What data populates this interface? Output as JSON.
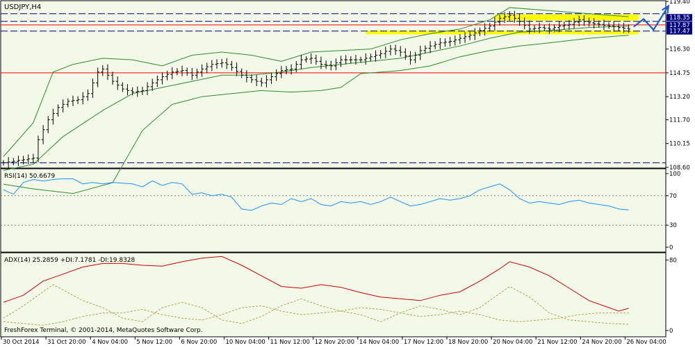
{
  "colors": {
    "background": "#ffffff",
    "panel_bg": "#f2f9e8",
    "border": "#000000",
    "bars": "#000000",
    "bollinger": "#2e8b2e",
    "rsi": "#1e90ff",
    "adx": "#cc0000",
    "di": "#b8a64a",
    "hline_dash": "#000080",
    "hline_red": "#ff0000",
    "highlight": "#ffff00",
    "forecast": "#1e5acc",
    "grid": "#808080"
  },
  "footer": {
    "copyright": "FreshForex Terminal, © 2001-2014, MetaQuotes Software Corp."
  },
  "chart_data": [
    {
      "type": "candlestick",
      "title": "USDJPY,H4",
      "yticks": [
        "119.40",
        "118.35",
        "117.87",
        "117.47",
        "116.30",
        "114.75",
        "113.20",
        "111.70",
        "110.15",
        "108.60"
      ],
      "ylim": [
        108.6,
        119.4
      ],
      "x_labels": [
        "30 Oct 2014",
        "31 Oct 20:00",
        "4 Nov 04:00",
        "5 Nov 12:00",
        "6 Nov 20:00",
        "10 Nov 04:00",
        "11 Nov 12:00",
        "12 Nov 20:00",
        "14 Nov 04:00",
        "17 Nov 12:00",
        "18 Nov 20:00",
        "20 Nov 04:00",
        "21 Nov 12:00",
        "24 Nov 20:00",
        "26 Nov 04:00"
      ],
      "close_anchors": [
        [
          0,
          108.9
        ],
        [
          6,
          109.2
        ],
        [
          7,
          110.4
        ],
        [
          9,
          111.7
        ],
        [
          11,
          112.5
        ],
        [
          13,
          112.9
        ],
        [
          15,
          113.0
        ],
        [
          17,
          113.4
        ],
        [
          19,
          114.8
        ],
        [
          20,
          115.0
        ],
        [
          22,
          114.2
        ],
        [
          24,
          113.7
        ],
        [
          26,
          113.5
        ],
        [
          28,
          113.6
        ],
        [
          30,
          114.1
        ],
        [
          32,
          114.5
        ],
        [
          34,
          114.8
        ],
        [
          36,
          114.9
        ],
        [
          38,
          114.6
        ],
        [
          40,
          115.0
        ],
        [
          42,
          115.3
        ],
        [
          44,
          115.4
        ],
        [
          45,
          115.3
        ],
        [
          46,
          115.1
        ],
        [
          48,
          114.6
        ],
        [
          50,
          114.3
        ],
        [
          52,
          114.1
        ],
        [
          54,
          114.5
        ],
        [
          56,
          114.9
        ],
        [
          58,
          115.0
        ],
        [
          60,
          115.6
        ],
        [
          62,
          115.7
        ],
        [
          64,
          115.3
        ],
        [
          66,
          115.2
        ],
        [
          68,
          115.6
        ],
        [
          70,
          115.6
        ],
        [
          72,
          115.6
        ],
        [
          74,
          115.8
        ],
        [
          76,
          116.0
        ],
        [
          78,
          116.3
        ],
        [
          80,
          116.1
        ],
        [
          82,
          115.6
        ],
        [
          84,
          116.2
        ],
        [
          86,
          116.5
        ],
        [
          88,
          116.7
        ],
        [
          90,
          116.8
        ],
        [
          92,
          117.0
        ],
        [
          94,
          117.2
        ],
        [
          96,
          117.5
        ],
        [
          98,
          117.8
        ],
        [
          100,
          118.3
        ],
        [
          102,
          118.5
        ],
        [
          104,
          118.1
        ],
        [
          106,
          117.6
        ],
        [
          108,
          117.7
        ],
        [
          110,
          117.6
        ],
        [
          112,
          117.8
        ],
        [
          114,
          117.9
        ],
        [
          116,
          118.2
        ],
        [
          118,
          118.0
        ],
        [
          120,
          117.9
        ],
        [
          122,
          117.8
        ],
        [
          124,
          117.7
        ],
        [
          126,
          117.6
        ]
      ],
      "highs_lows_note": "",
      "bollinger": {
        "upper": [
          [
            0,
            109.3
          ],
          [
            6,
            111.5
          ],
          [
            10,
            114.8
          ],
          [
            14,
            115.3
          ],
          [
            20,
            115.7
          ],
          [
            26,
            115.6
          ],
          [
            32,
            115.2
          ],
          [
            38,
            115.9
          ],
          [
            44,
            116.1
          ],
          [
            50,
            115.9
          ],
          [
            56,
            115.5
          ],
          [
            62,
            116.1
          ],
          [
            68,
            116.2
          ],
          [
            74,
            116.3
          ],
          [
            80,
            116.9
          ],
          [
            86,
            117.3
          ],
          [
            92,
            117.6
          ],
          [
            98,
            118.2
          ],
          [
            102,
            119.0
          ],
          [
            110,
            118.8
          ],
          [
            118,
            118.6
          ],
          [
            126,
            118.4
          ]
        ],
        "middle": [
          [
            0,
            108.4
          ],
          [
            6,
            108.8
          ],
          [
            12,
            110.6
          ],
          [
            20,
            112.3
          ],
          [
            26,
            113.4
          ],
          [
            32,
            113.8
          ],
          [
            38,
            114.2
          ],
          [
            44,
            114.6
          ],
          [
            50,
            114.6
          ],
          [
            56,
            114.8
          ],
          [
            62,
            115.1
          ],
          [
            68,
            115.3
          ],
          [
            74,
            115.5
          ],
          [
            80,
            115.7
          ],
          [
            86,
            116.1
          ],
          [
            92,
            116.5
          ],
          [
            98,
            117.0
          ],
          [
            104,
            117.4
          ],
          [
            110,
            117.5
          ],
          [
            118,
            117.7
          ],
          [
            126,
            117.8
          ]
        ],
        "lower": [
          [
            0,
            107.5
          ],
          [
            6,
            107.2
          ],
          [
            14,
            106.9
          ],
          [
            22,
            107.6
          ],
          [
            28,
            111.0
          ],
          [
            34,
            112.7
          ],
          [
            40,
            113.2
          ],
          [
            46,
            113.4
          ],
          [
            52,
            113.6
          ],
          [
            58,
            113.5
          ],
          [
            64,
            113.6
          ],
          [
            68,
            113.8
          ],
          [
            72,
            114.7
          ],
          [
            80,
            114.9
          ],
          [
            86,
            115.2
          ],
          [
            92,
            115.8
          ],
          [
            98,
            116.2
          ],
          [
            104,
            116.5
          ],
          [
            110,
            116.7
          ],
          [
            118,
            117.0
          ],
          [
            126,
            117.2
          ]
        ]
      },
      "hlines": [
        {
          "value": 118.6,
          "style": "dash"
        },
        {
          "value": 118.1,
          "style": "dash"
        },
        {
          "value": 117.87,
          "style": "red"
        },
        {
          "value": 117.47,
          "style": "dash"
        },
        {
          "value": 114.75,
          "style": "red"
        },
        {
          "value": 108.9,
          "style": "dash"
        }
      ],
      "highlight_bands": [
        {
          "from_index": 99,
          "to_index": 128,
          "low": 118.15,
          "high": 118.55
        },
        {
          "from_index": 73,
          "to_index": 128,
          "low": 117.25,
          "high": 117.5
        }
      ],
      "forecast_points": [
        [
          127,
          117.75
        ],
        [
          129,
          118.25
        ],
        [
          131,
          117.55
        ],
        [
          134,
          119.1
        ]
      ],
      "price_labels": [
        {
          "value": "118.35",
          "y": 118.35
        },
        {
          "value": "117.87",
          "y": 117.87
        },
        {
          "value": "117.47",
          "y": 117.47
        }
      ]
    },
    {
      "type": "line",
      "label": "RSI(14) 50.6679",
      "yticks": [
        "100",
        "70",
        "30",
        "0"
      ],
      "ylim": [
        0,
        100
      ],
      "levels": [
        70,
        30
      ],
      "values": [
        [
          0,
          78
        ],
        [
          2,
          72
        ],
        [
          4,
          88
        ],
        [
          6,
          92
        ],
        [
          8,
          90
        ],
        [
          10,
          92
        ],
        [
          12,
          93
        ],
        [
          14,
          93
        ],
        [
          16,
          86
        ],
        [
          18,
          88
        ],
        [
          20,
          86
        ],
        [
          22,
          88
        ],
        [
          24,
          87
        ],
        [
          26,
          86
        ],
        [
          28,
          82
        ],
        [
          30,
          90
        ],
        [
          32,
          84
        ],
        [
          34,
          88
        ],
        [
          36,
          86
        ],
        [
          38,
          72
        ],
        [
          40,
          74
        ],
        [
          42,
          70
        ],
        [
          44,
          72
        ],
        [
          46,
          68
        ],
        [
          48,
          52
        ],
        [
          50,
          50
        ],
        [
          52,
          56
        ],
        [
          54,
          60
        ],
        [
          56,
          58
        ],
        [
          58,
          66
        ],
        [
          60,
          62
        ],
        [
          62,
          66
        ],
        [
          64,
          58
        ],
        [
          66,
          56
        ],
        [
          68,
          62
        ],
        [
          70,
          60
        ],
        [
          72,
          62
        ],
        [
          74,
          58
        ],
        [
          76,
          62
        ],
        [
          78,
          68
        ],
        [
          80,
          62
        ],
        [
          82,
          56
        ],
        [
          84,
          58
        ],
        [
          86,
          62
        ],
        [
          88,
          66
        ],
        [
          90,
          64
        ],
        [
          92,
          66
        ],
        [
          94,
          70
        ],
        [
          96,
          78
        ],
        [
          98,
          82
        ],
        [
          100,
          86
        ],
        [
          102,
          78
        ],
        [
          104,
          66
        ],
        [
          106,
          60
        ],
        [
          108,
          62
        ],
        [
          110,
          60
        ],
        [
          112,
          58
        ],
        [
          114,
          62
        ],
        [
          116,
          64
        ],
        [
          118,
          60
        ],
        [
          120,
          58
        ],
        [
          122,
          56
        ],
        [
          124,
          52
        ],
        [
          126,
          50.7
        ]
      ]
    },
    {
      "type": "line",
      "label": "ADX(14) 25.2859 +DI:7.1781 -DI:19.8328",
      "yticks": [
        "80",
        "0"
      ],
      "ylim": [
        0,
        85
      ],
      "series": [
        {
          "values": [
            [
              0,
              32
            ],
            [
              4,
              40
            ],
            [
              8,
              56
            ],
            [
              12,
              64
            ],
            [
              16,
              72
            ],
            [
              20,
              76
            ],
            [
              24,
              76
            ],
            [
              28,
              74
            ],
            [
              32,
              73
            ],
            [
              36,
              78
            ],
            [
              40,
              82
            ],
            [
              44,
              84
            ],
            [
              48,
              74
            ],
            [
              52,
              62
            ],
            [
              56,
              50
            ],
            [
              60,
              48
            ],
            [
              64,
              52
            ],
            [
              68,
              49
            ],
            [
              72,
              43
            ],
            [
              76,
              38
            ],
            [
              80,
              36
            ],
            [
              84,
              34
            ],
            [
              88,
              40
            ],
            [
              92,
              44
            ],
            [
              96,
              56
            ],
            [
              100,
              70
            ],
            [
              102,
              78
            ],
            [
              106,
              72
            ],
            [
              110,
              62
            ],
            [
              114,
              48
            ],
            [
              118,
              34
            ],
            [
              122,
              26
            ],
            [
              124,
              22
            ],
            [
              126,
              25.3
            ]
          ]
        },
        {
          "values": [
            [
              0,
              14
            ],
            [
              4,
              28
            ],
            [
              8,
              44
            ],
            [
              10,
              52
            ],
            [
              12,
              46
            ],
            [
              16,
              34
            ],
            [
              20,
              26
            ],
            [
              24,
              14
            ],
            [
              28,
              10
            ],
            [
              32,
              26
            ],
            [
              36,
              32
            ],
            [
              40,
              26
            ],
            [
              44,
              12
            ],
            [
              48,
              8
            ],
            [
              52,
              16
            ],
            [
              56,
              28
            ],
            [
              60,
              36
            ],
            [
              64,
              28
            ],
            [
              68,
              22
            ],
            [
              72,
              18
            ],
            [
              76,
              10
            ],
            [
              80,
              20
            ],
            [
              84,
              28
            ],
            [
              88,
              24
            ],
            [
              92,
              18
            ],
            [
              96,
              26
            ],
            [
              100,
              42
            ],
            [
              102,
              50
            ],
            [
              106,
              38
            ],
            [
              110,
              20
            ],
            [
              114,
              12
            ],
            [
              118,
              10
            ],
            [
              122,
              8
            ],
            [
              126,
              7.2
            ]
          ]
        },
        {
          "values": [
            [
              0,
              10
            ],
            [
              4,
              8
            ],
            [
              8,
              6
            ],
            [
              12,
              10
            ],
            [
              16,
              16
            ],
            [
              20,
              20
            ],
            [
              24,
              20
            ],
            [
              28,
              24
            ],
            [
              32,
              18
            ],
            [
              36,
              14
            ],
            [
              40,
              12
            ],
            [
              44,
              18
            ],
            [
              48,
              26
            ],
            [
              52,
              28
            ],
            [
              56,
              22
            ],
            [
              60,
              18
            ],
            [
              64,
              20
            ],
            [
              68,
              22
            ],
            [
              72,
              26
            ],
            [
              76,
              24
            ],
            [
              80,
              20
            ],
            [
              84,
              16
            ],
            [
              88,
              18
            ],
            [
              92,
              22
            ],
            [
              96,
              18
            ],
            [
              100,
              12
            ],
            [
              104,
              10
            ],
            [
              108,
              12
            ],
            [
              112,
              14
            ],
            [
              116,
              18
            ],
            [
              120,
              20
            ],
            [
              124,
              20
            ],
            [
              126,
              19.8
            ]
          ]
        }
      ]
    }
  ]
}
